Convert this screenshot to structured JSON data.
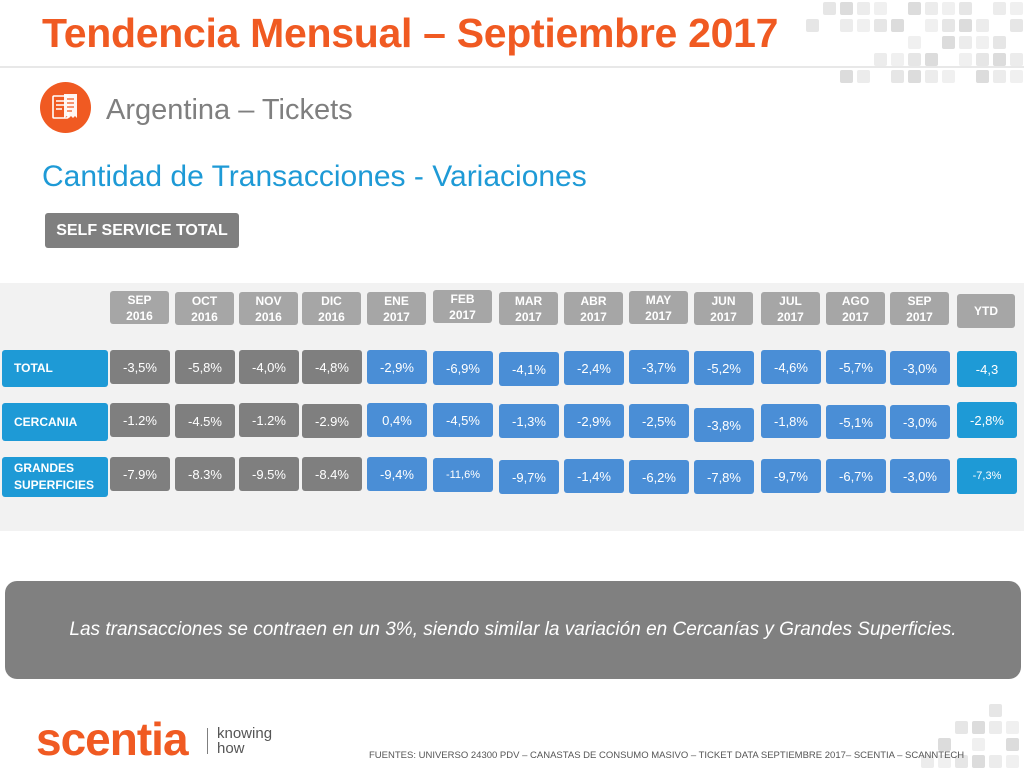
{
  "title": "Tendencia Mensual – Septiembre 2017",
  "subtitle": "Argentina – Tickets",
  "heading": "Cantidad de Transacciones - Variaciones",
  "segment_button": "SELF SERVICE TOTAL",
  "table": {
    "months": [
      {
        "m": "SEP",
        "y": "2016"
      },
      {
        "m": "OCT",
        "y": "2016"
      },
      {
        "m": "NOV",
        "y": "2016"
      },
      {
        "m": "DIC",
        "y": "2016"
      },
      {
        "m": "ENE",
        "y": "2017"
      },
      {
        "m": "FEB",
        "y": "2017"
      },
      {
        "m": "MAR",
        "y": "2017"
      },
      {
        "m": "ABR",
        "y": "2017"
      },
      {
        "m": "MAY",
        "y": "2017"
      },
      {
        "m": "JUN",
        "y": "2017"
      },
      {
        "m": "JUL",
        "y": "2017"
      },
      {
        "m": "AGO",
        "y": "2017"
      },
      {
        "m": "SEP",
        "y": "2017"
      }
    ],
    "ytd_label": "YTD",
    "rows": [
      {
        "label": "TOTAL",
        "values": [
          "-3,5%",
          "-5,8%",
          "-4,0%",
          "-4,8%",
          "-2,9%",
          "-6,9%",
          "-4,1%",
          "-2,4%",
          "-3,7%",
          "-5,2%",
          "-4,6%",
          "-5,7%",
          "-3,0%"
        ],
        "ytd": "-4,3"
      },
      {
        "label": "CERCANIA",
        "values": [
          "-1.2%",
          "-4.5%",
          "-1.2%",
          "-2.9%",
          "0,4%",
          "-4,5%",
          "-1,3%",
          "-2,9%",
          "-2,5%",
          "-3,8%",
          "-1,8%",
          "-5,1%",
          "-3,0%"
        ],
        "ytd": "-2,8%"
      },
      {
        "label": "GRANDES SUPERFICIES",
        "values": [
          "-7.9%",
          "-8.3%",
          "-9.5%",
          "-8.4%",
          "-9,4%",
          "-11,6%",
          "-9,7%",
          "-1,4%",
          "-6,2%",
          "-7,8%",
          "-9,7%",
          "-6,7%",
          "-3,0%"
        ],
        "ytd": "-7,3%"
      }
    ]
  },
  "summary": "Las transacciones se contraen en un 3%, siendo similar la variación en Cercanías y Grandes Superficies.",
  "brand": {
    "logo": "scentia",
    "tagline_1": "knowing",
    "tagline_2": "how"
  },
  "footer": "FUENTES: UNIVERSO 24300 PDV – CANASTAS DE CONSUMO MASIVO – TICKET DATA SEPTIEMBRE 2017– SCENTIA – SCANNTECH",
  "icons": {
    "section_icon": "receipt-icon"
  },
  "colors": {
    "accent_orange": "#f05a22",
    "accent_blue": "#1e9ad6",
    "cell_blue": "#4a8ed6",
    "cell_gray": "#7f7f7f",
    "header_gray": "#a6a6a6"
  }
}
